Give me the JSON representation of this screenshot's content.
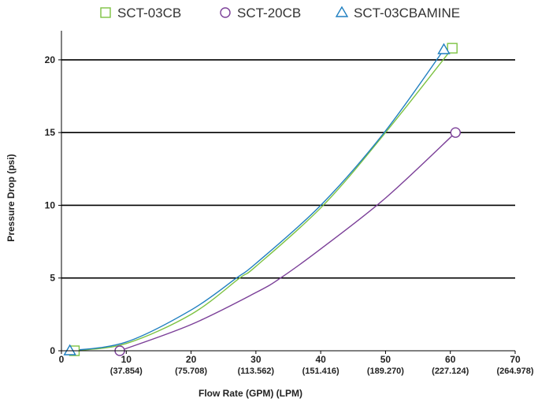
{
  "chart_data": {
    "type": "line",
    "title": "",
    "xlabel": "Flow Rate (GPM) (LPM)",
    "ylabel": "Pressure Drop (psi)",
    "xlim": [
      0,
      70
    ],
    "ylim": [
      0,
      22
    ],
    "x_ticks": [
      {
        "value": 0,
        "label": "0",
        "sub": ""
      },
      {
        "value": 10,
        "label": "10",
        "sub": "(37.854)"
      },
      {
        "value": 20,
        "label": "20",
        "sub": "(75.708)"
      },
      {
        "value": 30,
        "label": "30",
        "sub": "(113.562)"
      },
      {
        "value": 40,
        "label": "40",
        "sub": "(151.416)"
      },
      {
        "value": 50,
        "label": "50",
        "sub": "(189.270)"
      },
      {
        "value": 60,
        "label": "60",
        "sub": "(227.124)"
      },
      {
        "value": 70,
        "label": "70",
        "sub": "(264.978)"
      }
    ],
    "y_ticks": [
      0,
      5,
      10,
      15,
      20
    ],
    "gridlines": "horizontal",
    "legend_position": "top",
    "series": [
      {
        "name": "SCT-03CB",
        "color": "#7dc242",
        "marker": "square",
        "x": [
          2.0,
          10,
          20,
          27.5,
          30,
          40.4,
          50,
          60.3
        ],
        "y": [
          0,
          0.5,
          2.5,
          5,
          5.8,
          10,
          15,
          20.8
        ],
        "endpoint_markers": [
          [
            2.0,
            0
          ],
          [
            60.3,
            20.8
          ]
        ]
      },
      {
        "name": "SCT-20CB",
        "color": "#7b3f98",
        "marker": "circle",
        "x": [
          9,
          20,
          30,
          33.8,
          40,
          50,
          60.8
        ],
        "y": [
          0,
          1.8,
          4,
          5,
          7,
          10.5,
          15
        ],
        "endpoint_markers": [
          [
            9,
            0
          ],
          [
            60.8,
            15
          ]
        ]
      },
      {
        "name": "SCT-03CBAMINE",
        "color": "#1f7fc0",
        "marker": "triangle",
        "x": [
          1.3,
          10,
          20,
          27,
          30,
          40,
          49.8,
          59
        ],
        "y": [
          0,
          0.6,
          2.8,
          5,
          6,
          10,
          15,
          20.7
        ],
        "endpoint_markers": [
          [
            1.3,
            0
          ],
          [
            59,
            20.7
          ]
        ]
      }
    ]
  }
}
